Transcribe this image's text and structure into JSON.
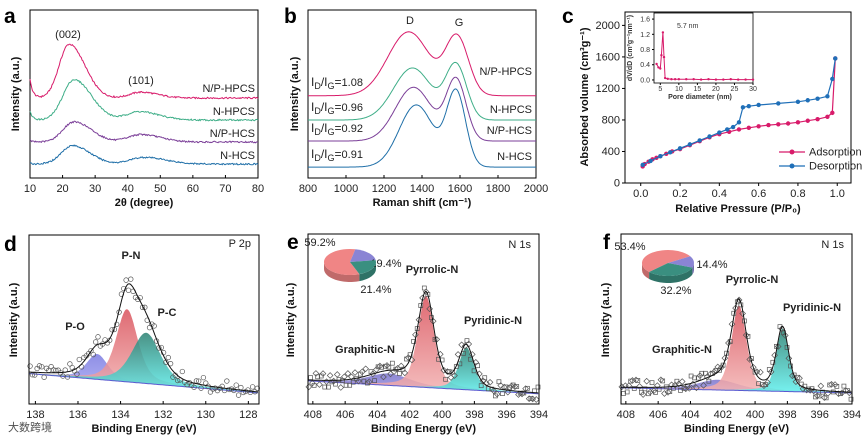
{
  "figure": {
    "panel_labels": [
      "a",
      "b",
      "c",
      "d",
      "e",
      "f"
    ],
    "watermark": "大数跨境"
  },
  "chart_data": [
    {
      "panel": "a",
      "type": "line",
      "xlabel": "2θ (degree)",
      "ylabel": "Intensity (a.u.)",
      "xlim": [
        10,
        80
      ],
      "ylim": [
        0,
        10
      ],
      "xticks": [
        "10",
        "20",
        "30",
        "40",
        "50",
        "60",
        "70",
        "80"
      ],
      "annotations": [
        "(002)",
        "(101)"
      ],
      "series": [
        {
          "name": "N/P-HPCS",
          "color": "#d81b6a",
          "offset": 4.76,
          "peaks": [
            {
              "center": 22,
              "amp": 3.2,
              "width": 3.6
            },
            {
              "center": 44,
              "amp": 0.35,
              "width": 4
            }
          ],
          "low_angle_rise": 1.1
        },
        {
          "name": "N-HPCS",
          "color": "#3fae88",
          "offset": 3.45,
          "peaks": [
            {
              "center": 23.5,
              "amp": 2.4,
              "width": 4
            },
            {
              "center": 43.5,
              "amp": 0.5,
              "width": 4.5
            }
          ],
          "low_angle_rise": 0.5
        },
        {
          "name": "N/P-HCS",
          "color": "#7b3f98",
          "offset": 2.14,
          "peaks": [
            {
              "center": 23.5,
              "amp": 1.2,
              "width": 4
            },
            {
              "center": 44,
              "amp": 0.45,
              "width": 4.5
            }
          ],
          "low_angle_rise": 0.1
        },
        {
          "name": "N-HCS",
          "color": "#1f6fa8",
          "offset": 0.83,
          "peaks": [
            {
              "center": 23,
              "amp": 1.1,
              "width": 4
            },
            {
              "center": 45,
              "amp": 0.4,
              "width": 5
            }
          ],
          "low_angle_rise": 0.05
        }
      ]
    },
    {
      "panel": "b",
      "type": "line",
      "xlabel": "Raman shift (cm⁻¹)",
      "ylabel": "Intensity (a.u.)",
      "xlim": [
        800,
        2000
      ],
      "ylim": [
        0,
        10
      ],
      "xticks": [
        "800",
        "1000",
        "1200",
        "1400",
        "1600",
        "1800",
        "2000"
      ],
      "annotations": [
        "D",
        "G"
      ],
      "ratio_parts": [
        "I",
        "D",
        "/I",
        "G",
        "="
      ],
      "series": [
        {
          "name": "N/P-HPCS",
          "color": "#d81b6a",
          "offset": 4.9,
          "id_ig": "1.08",
          "D": {
            "center": 1330,
            "amp": 3.8,
            "width": 110
          },
          "G": {
            "center": 1585,
            "amp": 3.4,
            "width": 60
          }
        },
        {
          "name": "N-HPCS",
          "color": "#3fae88",
          "offset": 3.45,
          "id_ig": "0.96",
          "D": {
            "center": 1350,
            "amp": 3.1,
            "width": 100
          },
          "G": {
            "center": 1580,
            "amp": 3.2,
            "width": 55
          }
        },
        {
          "name": "N/P-HCS",
          "color": "#7b3f98",
          "offset": 2.2,
          "id_ig": "0.92",
          "D": {
            "center": 1355,
            "amp": 3.2,
            "width": 95
          },
          "G": {
            "center": 1580,
            "amp": 3.6,
            "width": 52
          }
        },
        {
          "name": "N-HCS",
          "color": "#1f6fa8",
          "offset": 0.65,
          "id_ig": "0.91",
          "D": {
            "center": 1370,
            "amp": 3.7,
            "width": 90
          },
          "G": {
            "center": 1580,
            "amp": 4.4,
            "width": 50
          }
        }
      ]
    },
    {
      "panel": "c",
      "type": "line",
      "xlabel": "Relative Pressure (P/P₀)",
      "ylabel": "Absorbed volume (cm³g⁻¹)",
      "xlim": [
        -0.08,
        1.07
      ],
      "ylim": [
        0,
        2170
      ],
      "xticks": [
        "0.0",
        "0.2",
        "0.4",
        "0.6",
        "0.8",
        "1.0"
      ],
      "yticks": [
        "0",
        "400",
        "800",
        "1200",
        "1600",
        "2000"
      ],
      "legend": "bottom-right",
      "series": [
        {
          "name": "Adsorption",
          "color": "#d81b6a",
          "x": [
            0.01,
            0.02,
            0.04,
            0.06,
            0.08,
            0.1,
            0.13,
            0.16,
            0.2,
            0.25,
            0.3,
            0.35,
            0.4,
            0.45,
            0.5,
            0.55,
            0.6,
            0.65,
            0.7,
            0.75,
            0.8,
            0.85,
            0.9,
            0.95,
            0.975,
            0.99
          ],
          "y": [
            210,
            240,
            270,
            300,
            320,
            340,
            370,
            400,
            430,
            480,
            530,
            580,
            620,
            650,
            680,
            700,
            720,
            735,
            745,
            755,
            770,
            790,
            810,
            840,
            890,
            1580
          ]
        },
        {
          "name": "Desorption",
          "color": "#1f6fb8",
          "x": [
            0.99,
            0.975,
            0.95,
            0.9,
            0.85,
            0.8,
            0.7,
            0.6,
            0.55,
            0.52,
            0.5,
            0.47,
            0.44,
            0.4,
            0.35,
            0.3,
            0.25,
            0.2,
            0.15,
            0.1,
            0.05,
            0.01
          ],
          "y": [
            1580,
            1320,
            1100,
            1070,
            1050,
            1030,
            1010,
            990,
            975,
            960,
            770,
            710,
            680,
            640,
            590,
            540,
            490,
            440,
            390,
            340,
            280,
            230
          ]
        }
      ],
      "inset": {
        "type": "line",
        "xlabel": "Pore diameter (nm)",
        "ylabel": "dV/dD (cm³g⁻¹nm⁻¹)",
        "xlim": [
          3.3,
          30
        ],
        "ylim": [
          -0.08,
          1.76
        ],
        "xticks": [
          "5",
          "10",
          "15",
          "20",
          "25",
          "30"
        ],
        "yticks": [
          "0.0",
          "0.4",
          "0.8",
          "1.2",
          "1.6"
        ],
        "annotation": "5.7 nm",
        "color": "#d81b6a",
        "x": [
          4,
          4.5,
          5,
          5.3,
          5.7,
          6,
          6.3,
          7,
          8,
          9,
          10,
          12,
          14,
          16,
          18,
          20,
          22,
          24,
          26,
          28,
          30
        ],
        "y": [
          0.42,
          0.33,
          0.3,
          0.65,
          1.25,
          0.6,
          0.05,
          0.03,
          0.02,
          0.02,
          0.02,
          0.02,
          0.02,
          0.01,
          0.02,
          0.01,
          0.01,
          0.02,
          0.01,
          0.01,
          0.01
        ]
      }
    },
    {
      "panel": "d",
      "type": "area",
      "title": "P 2p",
      "xlabel": "Binding Energy (eV)",
      "ylabel": "Intensity (a.u.)",
      "xlim": [
        138.3,
        127.5
      ],
      "ylim": [
        0,
        10
      ],
      "xticks": [
        "138",
        "136",
        "134",
        "132",
        "130",
        "128"
      ],
      "background": [
        1.8,
        0.65
      ],
      "components": [
        {
          "name": "P-O",
          "center": 135.1,
          "amp": 1.5,
          "width": 0.6,
          "color": "#7b7be0",
          "color2": "#a9a9f5"
        },
        {
          "name": "P-N",
          "center": 133.7,
          "amp": 4.3,
          "width": 0.6,
          "color": "#d9505a",
          "color2": "#f3b3b3"
        },
        {
          "name": "P-C",
          "center": 132.8,
          "amp": 3.0,
          "width": 0.8,
          "color": "#2a7f70",
          "color2": "#5ef0ee"
        }
      ]
    },
    {
      "panel": "e",
      "type": "area",
      "title": "N 1s",
      "xlabel": "Binding Energy (eV)",
      "ylabel": "Intensity (a.u.)",
      "xlim": [
        408.3,
        394
      ],
      "ylim": [
        0,
        10
      ],
      "xticks": [
        "408",
        "406",
        "404",
        "402",
        "400",
        "398",
        "396",
        "394"
      ],
      "background": [
        1.36,
        0.6
      ],
      "components": [
        {
          "name": "Graphitic-N",
          "center": 403.3,
          "amp": 0.7,
          "width": 1.6,
          "color": "#7a72cc",
          "color2": "#9c96e0"
        },
        {
          "name": "Pyrrolic-N",
          "center": 401.0,
          "amp": 5.4,
          "width": 0.6,
          "color": "#d9505a",
          "color2": "#f3b3b3"
        },
        {
          "name": "Pyridinic-N",
          "center": 398.5,
          "amp": 2.5,
          "width": 0.55,
          "color": "#2a7f70",
          "color2": "#5ef0ee"
        }
      ],
      "pie": {
        "labels": [
          "Pyrrolic-N",
          "Graphitic-N",
          "Pyridinic-N"
        ],
        "values": [
          59.2,
          19.4,
          21.4
        ],
        "value_labels": [
          "59.2%",
          "19.4%",
          "21.4%"
        ],
        "colors": [
          "#f08585",
          "#8a84d4",
          "#3a8f80"
        ]
      }
    },
    {
      "panel": "f",
      "type": "area",
      "title": "N 1s",
      "xlabel": "Binding Energy (eV)",
      "ylabel": "Intensity (a.u.)",
      "xlim": [
        408.3,
        394
      ],
      "ylim": [
        0,
        10
      ],
      "xticks": [
        "408",
        "406",
        "404",
        "402",
        "400",
        "398",
        "396",
        "394"
      ],
      "background": [
        0.95,
        0.65
      ],
      "components": [
        {
          "name": "Graphitic-N",
          "center": 402.3,
          "amp": 0.6,
          "width": 1.5,
          "color": "#7a72cc",
          "color2": "#9c96e0"
        },
        {
          "name": "Pyrrolic-N",
          "center": 401.0,
          "amp": 5.0,
          "width": 0.55,
          "color": "#d9505a",
          "color2": "#f3b3b3"
        },
        {
          "name": "Pyridinic-N",
          "center": 398.3,
          "amp": 3.7,
          "width": 0.45,
          "color": "#2a7f70",
          "color2": "#5ef0ee"
        }
      ],
      "pie": {
        "labels": [
          "Pyrrolic-N",
          "Graphitic-N",
          "Pyridinic-N"
        ],
        "values": [
          53.4,
          14.4,
          32.2
        ],
        "value_labels": [
          "53.4%",
          "14.4%",
          "32.2%"
        ],
        "colors": [
          "#f08585",
          "#8a84d4",
          "#3a8f80"
        ]
      }
    }
  ]
}
